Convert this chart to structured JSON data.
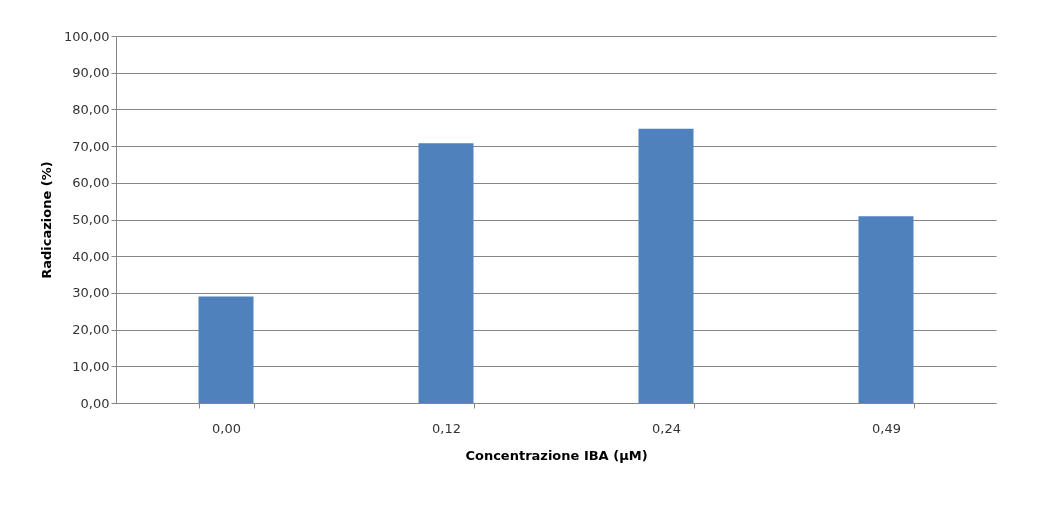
{
  "chart_data": {
    "type": "bar",
    "xlabel": "Concentrazione IBA (µM)",
    "ylabel": "Radicazione (%)",
    "categories": [
      "0,00",
      "0,12",
      "0,24",
      "0,49"
    ],
    "values": [
      29.0,
      70.8,
      74.7,
      50.9
    ],
    "color": "#4f81bd",
    "ylim": [
      0,
      100
    ],
    "yticks": [
      {
        "value": 0,
        "label": "0,00"
      },
      {
        "value": 10,
        "label": "10,00"
      },
      {
        "value": 20,
        "label": "20,00"
      },
      {
        "value": 30,
        "label": "30,00"
      },
      {
        "value": 40,
        "label": "40,00"
      },
      {
        "value": 50,
        "label": "50,00"
      },
      {
        "value": 60,
        "label": "60,00"
      },
      {
        "value": 70,
        "label": "70,00"
      },
      {
        "value": 80,
        "label": "80,00"
      },
      {
        "value": 90,
        "label": "90,00"
      },
      {
        "value": 100,
        "label": "100,00"
      }
    ],
    "grid": "y"
  }
}
